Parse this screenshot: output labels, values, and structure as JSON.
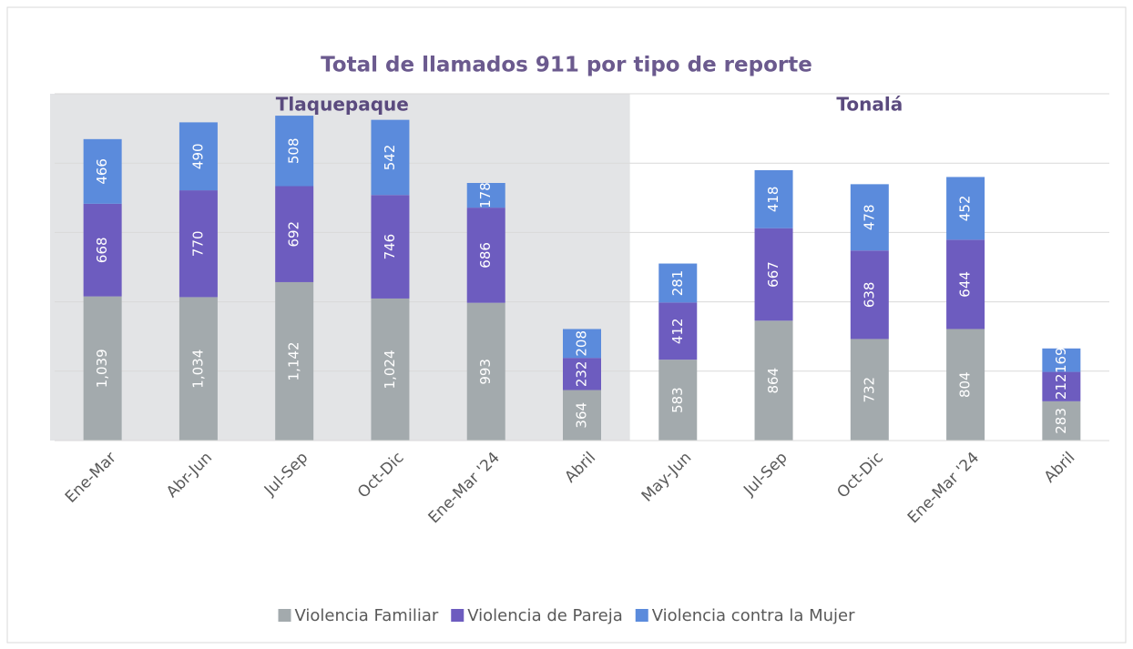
{
  "chart_data": {
    "type": "stacked-bar",
    "title": "Total de llamados 911 por tipo de reporte",
    "categories": [
      "Ene-Mar",
      "Abr-Jun",
      "Jul-Sep",
      "Oct-Dic",
      "Ene-Mar '24",
      "Abril",
      "May-Jun",
      "Jul-Sep",
      "Oct-Dic",
      "Ene-Mar '24",
      "Abril"
    ],
    "category_groups": [
      "Tlaquepaque",
      "Tlaquepaque",
      "Tlaquepaque",
      "Tlaquepaque",
      "Tlaquepaque",
      "Tlaquepaque",
      "Tonalá",
      "Tonalá",
      "Tonalá",
      "Tonalá",
      "Tonalá"
    ],
    "series": [
      {
        "name": "Violencia Familiar",
        "color": "#a3aaad",
        "values": [
          1039,
          1034,
          1142,
          1024,
          993,
          364,
          583,
          864,
          732,
          804,
          283
        ],
        "value_labels": [
          "1,039",
          "1,034",
          "1,142",
          "1,024",
          "993",
          "364",
          "583",
          "864",
          "732",
          "804",
          "283"
        ]
      },
      {
        "name": "Violencia de Pareja",
        "color": "#6d5cbf",
        "values": [
          668,
          770,
          692,
          746,
          686,
          232,
          412,
          667,
          638,
          644,
          212
        ]
      },
      {
        "name": "Violencia contra la Mujer",
        "color": "#5b8bdc",
        "values": [
          466,
          490,
          508,
          542,
          178,
          208,
          281,
          418,
          478,
          452,
          169
        ]
      }
    ],
    "ylim": [
      0,
      2500
    ],
    "yticks": [
      0,
      500,
      1000,
      1500,
      2000,
      2500
    ],
    "grid": true,
    "legend": "bottom"
  }
}
